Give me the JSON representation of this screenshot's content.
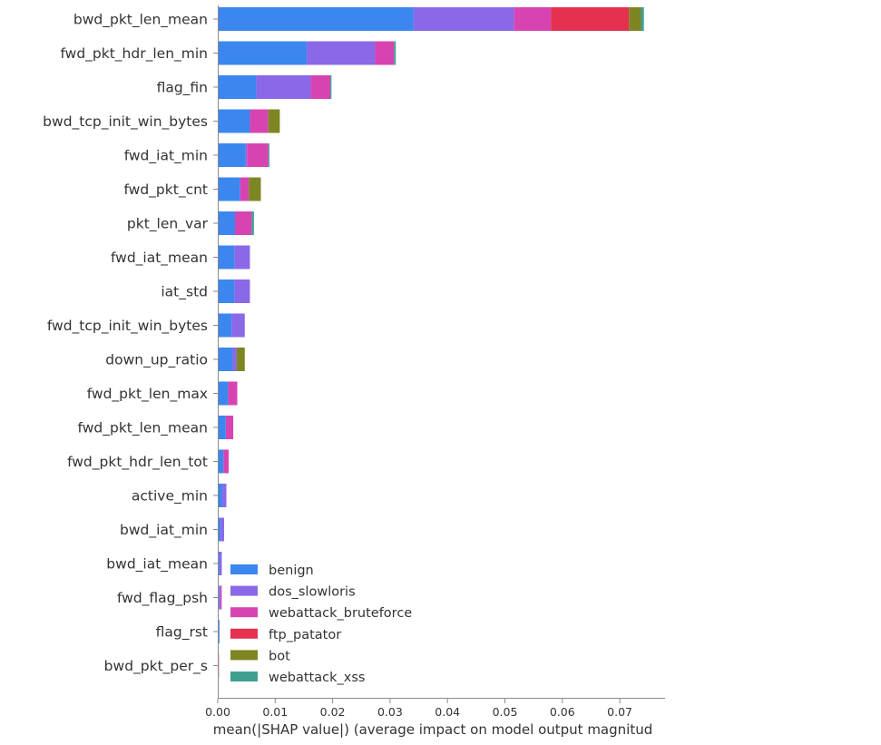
{
  "chart_data": {
    "type": "bar",
    "orientation": "horizontal",
    "stacked": true,
    "title": "",
    "xlabel": "mean(|SHAP value|) (average impact on model output magnitud",
    "ylabel": "",
    "xlim": [
      0,
      0.078
    ],
    "xticks": [
      0,
      0.01,
      0.02,
      0.03,
      0.04,
      0.05,
      0.06,
      0.07
    ],
    "xtick_labels": [
      "0.00",
      "0.01",
      "0.02",
      "0.03",
      "0.04",
      "0.05",
      "0.06",
      "0.07"
    ],
    "grid": false,
    "legend_position": "lower-left inside plot",
    "categories": [
      "bwd_pkt_len_mean",
      "fwd_pkt_hdr_len_min",
      "flag_fin",
      "bwd_tcp_init_win_bytes",
      "fwd_iat_min",
      "fwd_pkt_cnt",
      "pkt_len_var",
      "fwd_iat_mean",
      "iat_std",
      "fwd_tcp_init_win_bytes",
      "down_up_ratio",
      "fwd_pkt_len_max",
      "fwd_pkt_len_mean",
      "fwd_pkt_hdr_len_tot",
      "active_min",
      "bwd_iat_min",
      "bwd_iat_mean",
      "fwd_flag_psh",
      "flag_rst",
      "bwd_pkt_per_s"
    ],
    "series": [
      {
        "name": "benign",
        "color": "#3b87ef",
        "values": [
          0.0341,
          0.0155,
          0.0067,
          0.0056,
          0.0048,
          0.0039,
          0.003,
          0.0029,
          0.0029,
          0.0024,
          0.0026,
          0.0018,
          0.0014,
          0.001,
          0.0008,
          0.0005,
          0.0003,
          0.0002,
          0.0003,
          0.0
        ]
      },
      {
        "name": "dos_slowloris",
        "color": "#8a68e7",
        "values": [
          0.0175,
          0.0119,
          0.0095,
          0.0,
          0.0003,
          0.0,
          0.0,
          0.0027,
          0.0027,
          0.0023,
          0.0007,
          0.0,
          0.0,
          0.0,
          0.0007,
          0.0006,
          0.0004,
          0.0003,
          0.0,
          0.0
        ]
      },
      {
        "name": "webattack_bruteforce",
        "color": "#d744b2",
        "values": [
          0.0064,
          0.0033,
          0.0034,
          0.0032,
          0.0037,
          0.0015,
          0.0029,
          0.0,
          0.0,
          0.0,
          0.0,
          0.0016,
          0.0013,
          0.0009,
          0.0,
          0.0,
          0.0,
          0.0002,
          0.0,
          0.0
        ]
      },
      {
        "name": "ftp_patator",
        "color": "#e6304f",
        "values": [
          0.0136,
          0.0,
          0.0,
          0.0,
          0.0,
          0.0,
          0.0,
          0.0,
          0.0,
          0.0,
          0.0,
          0.0,
          0.0,
          0.0,
          0.0,
          0.0,
          0.0,
          0.0,
          0.0,
          0.0002
        ]
      },
      {
        "name": "bot",
        "color": "#7e8523",
        "values": [
          0.0021,
          0.0,
          0.0,
          0.002,
          0.0,
          0.0021,
          0.0,
          0.0,
          0.0,
          0.0,
          0.0014,
          0.0,
          0.0,
          0.0,
          0.0,
          0.0,
          0.0,
          0.0,
          0.0,
          0.0
        ]
      },
      {
        "name": "webattack_xss",
        "color": "#40a090",
        "values": [
          0.0005,
          0.0003,
          0.0002,
          0.0,
          0.0002,
          0.0,
          0.0004,
          0.0,
          0.0,
          0.0,
          0.0,
          0.0,
          0.0,
          0.0,
          0.0,
          0.0,
          0.0,
          0.0,
          0.0,
          0.0
        ]
      }
    ]
  }
}
